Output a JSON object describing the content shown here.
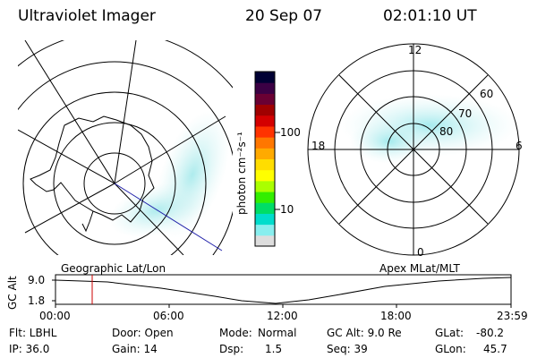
{
  "header": {
    "instrument": "Ultraviolet Imager",
    "date": "20 Sep 07",
    "time": "02:01:10 UT"
  },
  "colorbar": {
    "unit_label": "photon cm⁻²s⁻¹",
    "ticks": [
      "100",
      "10"
    ],
    "colors": [
      "#000033",
      "#3b0044",
      "#6a0033",
      "#a00000",
      "#d40000",
      "#ff3300",
      "#ff7700",
      "#ffaa00",
      "#ffdd00",
      "#ffff00",
      "#aaff00",
      "#33ee00",
      "#00dd66",
      "#00ddcc",
      "#88eeee",
      "#dddddd"
    ]
  },
  "left_map": {
    "label": "Geographic Lat/Lon"
  },
  "right_map": {
    "label": "Apex MLat/MLT",
    "mlt_labels": {
      "top": "12",
      "left": "18",
      "right": "6",
      "bottom": "0"
    },
    "lat_labels": [
      "60",
      "70",
      "80"
    ]
  },
  "timeline": {
    "axis_label": "GC Alt",
    "y_ticks": [
      "9.0",
      "1.8"
    ],
    "x_ticks": [
      "00:00",
      "06:00",
      "12:00",
      "18:00",
      "23:59"
    ],
    "marker_color": "#cc0000"
  },
  "info": {
    "row1": {
      "flt": "Flt: LBHL",
      "door": "Door: Open",
      "mode_label": "Mode:",
      "mode_value": "Normal",
      "gc_alt": "GC Alt: 9.0 Re",
      "glat_label": "GLat:",
      "glat_value": "-80.2"
    },
    "row2": {
      "ip": "IP: 36.0",
      "gain": "Gain: 14",
      "dsp_label": "Dsp:",
      "dsp_value": "1.5",
      "seq": "Seq: 39",
      "glon_label": "GLon:",
      "glon_value": "45.7"
    }
  }
}
